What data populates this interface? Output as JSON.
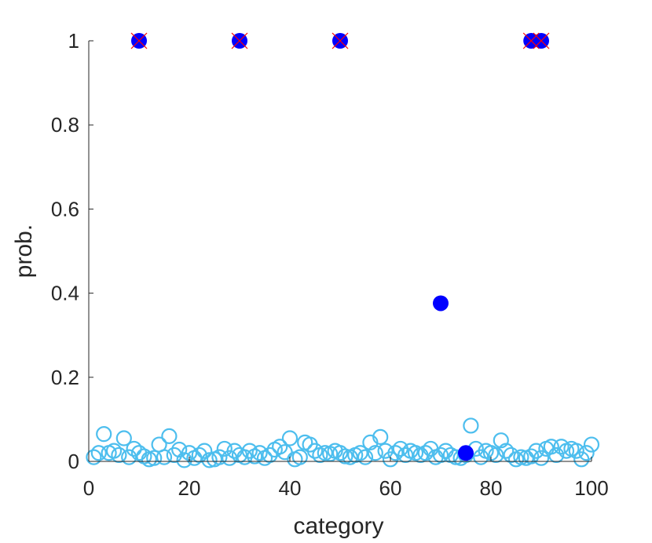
{
  "chart_data": {
    "type": "scatter",
    "title": "",
    "xlabel": "category",
    "ylabel": "prob.",
    "xlim": [
      0,
      100
    ],
    "ylim": [
      0,
      1
    ],
    "xticks": [
      "0",
      "20",
      "40",
      "60",
      "80",
      "100"
    ],
    "yticks": [
      "0",
      "0.2",
      "0.4",
      "0.6",
      "0.8",
      "1"
    ],
    "grid": false,
    "legend": "none",
    "colors": {
      "open_markers": "#4DBEEE",
      "filled_markers": "#0000FF",
      "cross_markers": "#FF0000",
      "axis": "#262626"
    },
    "series": [
      {
        "marker": "open-circle",
        "points": [
          [
            1,
            0.01
          ],
          [
            2,
            0.02
          ],
          [
            3,
            0.065
          ],
          [
            4,
            0.02
          ],
          [
            5,
            0.025
          ],
          [
            6,
            0.015
          ],
          [
            7,
            0.055
          ],
          [
            8,
            0.01
          ],
          [
            9,
            0.03
          ],
          [
            10,
            0.02
          ],
          [
            11,
            0.012
          ],
          [
            12,
            0.005
          ],
          [
            13,
            0.008
          ],
          [
            14,
            0.04
          ],
          [
            15,
            0.01
          ],
          [
            16,
            0.06
          ],
          [
            17,
            0.015
          ],
          [
            18,
            0.028
          ],
          [
            19,
            0.003
          ],
          [
            20,
            0.02
          ],
          [
            21,
            0.008
          ],
          [
            22,
            0.015
          ],
          [
            23,
            0.025
          ],
          [
            24,
            0.003
          ],
          [
            25,
            0.005
          ],
          [
            26,
            0.01
          ],
          [
            27,
            0.03
          ],
          [
            28,
            0.008
          ],
          [
            29,
            0.025
          ],
          [
            30,
            0.015
          ],
          [
            31,
            0.01
          ],
          [
            32,
            0.025
          ],
          [
            33,
            0.012
          ],
          [
            34,
            0.02
          ],
          [
            35,
            0.008
          ],
          [
            36,
            0.015
          ],
          [
            37,
            0.028
          ],
          [
            38,
            0.035
          ],
          [
            39,
            0.022
          ],
          [
            40,
            0.055
          ],
          [
            41,
            0.005
          ],
          [
            42,
            0.01
          ],
          [
            43,
            0.045
          ],
          [
            44,
            0.04
          ],
          [
            45,
            0.025
          ],
          [
            46,
            0.015
          ],
          [
            47,
            0.02
          ],
          [
            48,
            0.018
          ],
          [
            49,
            0.025
          ],
          [
            50,
            0.02
          ],
          [
            51,
            0.012
          ],
          [
            52,
            0.01
          ],
          [
            53,
            0.015
          ],
          [
            54,
            0.02
          ],
          [
            55,
            0.01
          ],
          [
            56,
            0.045
          ],
          [
            57,
            0.02
          ],
          [
            58,
            0.058
          ],
          [
            59,
            0.025
          ],
          [
            60,
            0.005
          ],
          [
            61,
            0.02
          ],
          [
            62,
            0.03
          ],
          [
            63,
            0.015
          ],
          [
            64,
            0.025
          ],
          [
            65,
            0.02
          ],
          [
            66,
            0.015
          ],
          [
            67,
            0.02
          ],
          [
            68,
            0.03
          ],
          [
            69,
            0.01
          ],
          [
            70,
            0.015
          ],
          [
            71,
            0.025
          ],
          [
            72,
            0.015
          ],
          [
            73,
            0.01
          ],
          [
            74,
            0.008
          ],
          [
            75,
            0.015
          ],
          [
            76,
            0.085
          ],
          [
            77,
            0.03
          ],
          [
            78,
            0.01
          ],
          [
            79,
            0.025
          ],
          [
            80,
            0.02
          ],
          [
            81,
            0.015
          ],
          [
            82,
            0.05
          ],
          [
            83,
            0.025
          ],
          [
            84,
            0.015
          ],
          [
            85,
            0.005
          ],
          [
            86,
            0.01
          ],
          [
            87,
            0.008
          ],
          [
            88,
            0.012
          ],
          [
            89,
            0.025
          ],
          [
            90,
            0.008
          ],
          [
            91,
            0.03
          ],
          [
            92,
            0.035
          ],
          [
            93,
            0.015
          ],
          [
            94,
            0.035
          ],
          [
            95,
            0.025
          ],
          [
            96,
            0.03
          ],
          [
            97,
            0.025
          ],
          [
            98,
            0.005
          ],
          [
            99,
            0.02
          ],
          [
            100,
            0.04
          ]
        ]
      },
      {
        "marker": "filled-circle",
        "points": [
          [
            10,
            1
          ],
          [
            30,
            1
          ],
          [
            50,
            1
          ],
          [
            70,
            0.376
          ],
          [
            75,
            0.02
          ],
          [
            88,
            1
          ],
          [
            90,
            1
          ]
        ]
      },
      {
        "marker": "cross",
        "points": [
          [
            10,
            1
          ],
          [
            30,
            1
          ],
          [
            50,
            1
          ],
          [
            88,
            1
          ],
          [
            90,
            1
          ]
        ]
      }
    ]
  }
}
